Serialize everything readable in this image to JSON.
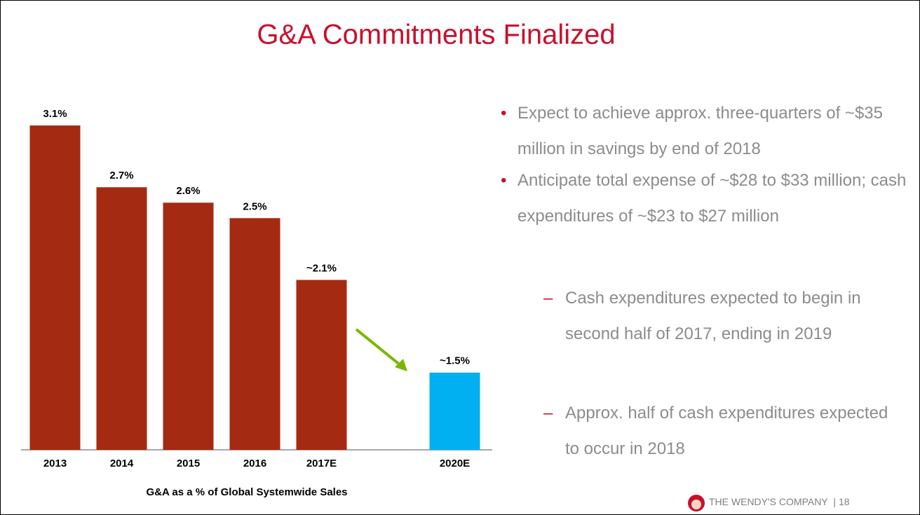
{
  "title": "G&A Commitments Finalized",
  "chart_data": {
    "type": "bar",
    "categories": [
      "2013",
      "2014",
      "2015",
      "2016",
      "2017E",
      null,
      "2020E"
    ],
    "values": [
      3.1,
      2.7,
      2.6,
      2.5,
      2.1,
      null,
      1.5
    ],
    "value_labels": [
      "3.1%",
      "2.7%",
      "2.6%",
      "2.5%",
      "~2.1%",
      null,
      "~1.5%"
    ],
    "colors": [
      "#a52a12",
      "#a52a12",
      "#a52a12",
      "#a52a12",
      "#a52a12",
      null,
      "#00b0f0"
    ],
    "ylim": [
      1,
      3.2
    ],
    "xlabel": "G&A as a % of Global Systemwide Sales"
  },
  "bullets": [
    {
      "text": "Expect to achieve approx. three-quarters of ~$35 million in savings by end of 2018"
    },
    {
      "text": "Anticipate total expense of ~$28 to $33 million; cash expenditures of ~$23 to $27 million",
      "sub": [
        "Cash expenditures expected to begin in second half of 2017, ending in 2019",
        "Approx. half of cash expenditures expected to occur in 2018"
      ]
    }
  ],
  "footer": {
    "company": "THE WENDY'S COMPANY",
    "page": "18"
  }
}
